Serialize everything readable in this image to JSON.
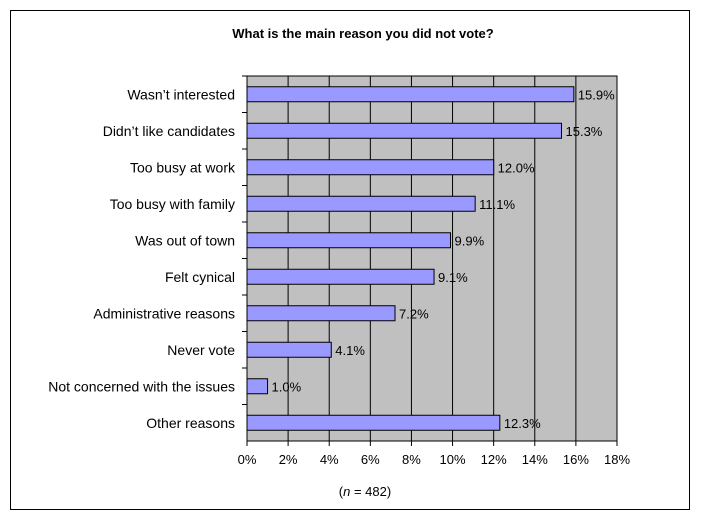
{
  "chart_data": {
    "type": "bar",
    "orientation": "horizontal",
    "title": "What is the main reason you did not vote?",
    "categories": [
      "Wasn’t interested",
      "Didn’t like candidates",
      "Too busy at work",
      "Too busy with family",
      "Was out of town",
      "Felt cynical",
      "Administrative reasons",
      "Never vote",
      "Not concerned with the issues",
      "Other reasons"
    ],
    "values": [
      15.9,
      15.3,
      12.0,
      11.1,
      9.9,
      9.1,
      7.2,
      4.1,
      1.0,
      12.3
    ],
    "value_labels": [
      "15.9%",
      "15.3%",
      "12.0%",
      "11.1%",
      "9.9%",
      "9.1%",
      "7.2%",
      "4.1%",
      "1.0%",
      "12.3%"
    ],
    "xticks": [
      "0%",
      "2%",
      "4%",
      "6%",
      "8%",
      "10%",
      "12%",
      "14%",
      "16%",
      "18%"
    ],
    "xlim": [
      0,
      18
    ],
    "grid": true,
    "legend": "none",
    "note_n": "n",
    "note_rest": " = 482)",
    "note_open": "(",
    "colors": {
      "bar_fill": "#9999ff",
      "bar_stroke": "#000000",
      "plot_bg": "#c0c0c0",
      "grid": "#000000"
    }
  }
}
